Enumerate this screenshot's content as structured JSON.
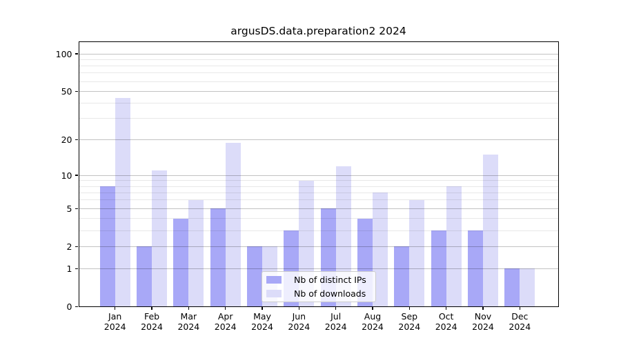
{
  "chart_data": {
    "type": "bar",
    "title": "argusDS.data.preparation2 2024",
    "categories": [
      "Jan 2024",
      "Feb 2024",
      "Mar 2024",
      "Apr 2024",
      "May 2024",
      "Jun 2024",
      "Jul 2024",
      "Aug 2024",
      "Sep 2024",
      "Oct 2024",
      "Nov 2024",
      "Dec 2024"
    ],
    "series": [
      {
        "name": "Nb of distinct IPs",
        "color": "#a8a8f7",
        "values": [
          8,
          2,
          4,
          5,
          2,
          3,
          5,
          4,
          2,
          3,
          3,
          1
        ]
      },
      {
        "name": "Nb of downloads",
        "color": "#dcdcf9",
        "values": [
          44,
          11,
          6,
          19,
          2,
          9,
          12,
          7,
          6,
          8,
          15,
          1
        ]
      }
    ],
    "xlabel": "",
    "ylabel": "",
    "y_scale": "log1p",
    "y_ticks": [
      0,
      1,
      2,
      5,
      10,
      20,
      50,
      100
    ],
    "y_minor_gridlines": [
      3,
      4,
      6,
      7,
      8,
      9,
      30,
      40,
      60,
      70,
      80,
      90
    ],
    "ylim": [
      0,
      126
    ],
    "grid": true,
    "legend_position": "lower center"
  },
  "colors": {
    "grid_major": "rgba(0, 0, 0, 0.24)",
    "grid_minor": "rgba(0, 0, 0, 0.09)",
    "spine": "#000000",
    "legend_border": "#cccccc",
    "background": "#ffffff"
  }
}
